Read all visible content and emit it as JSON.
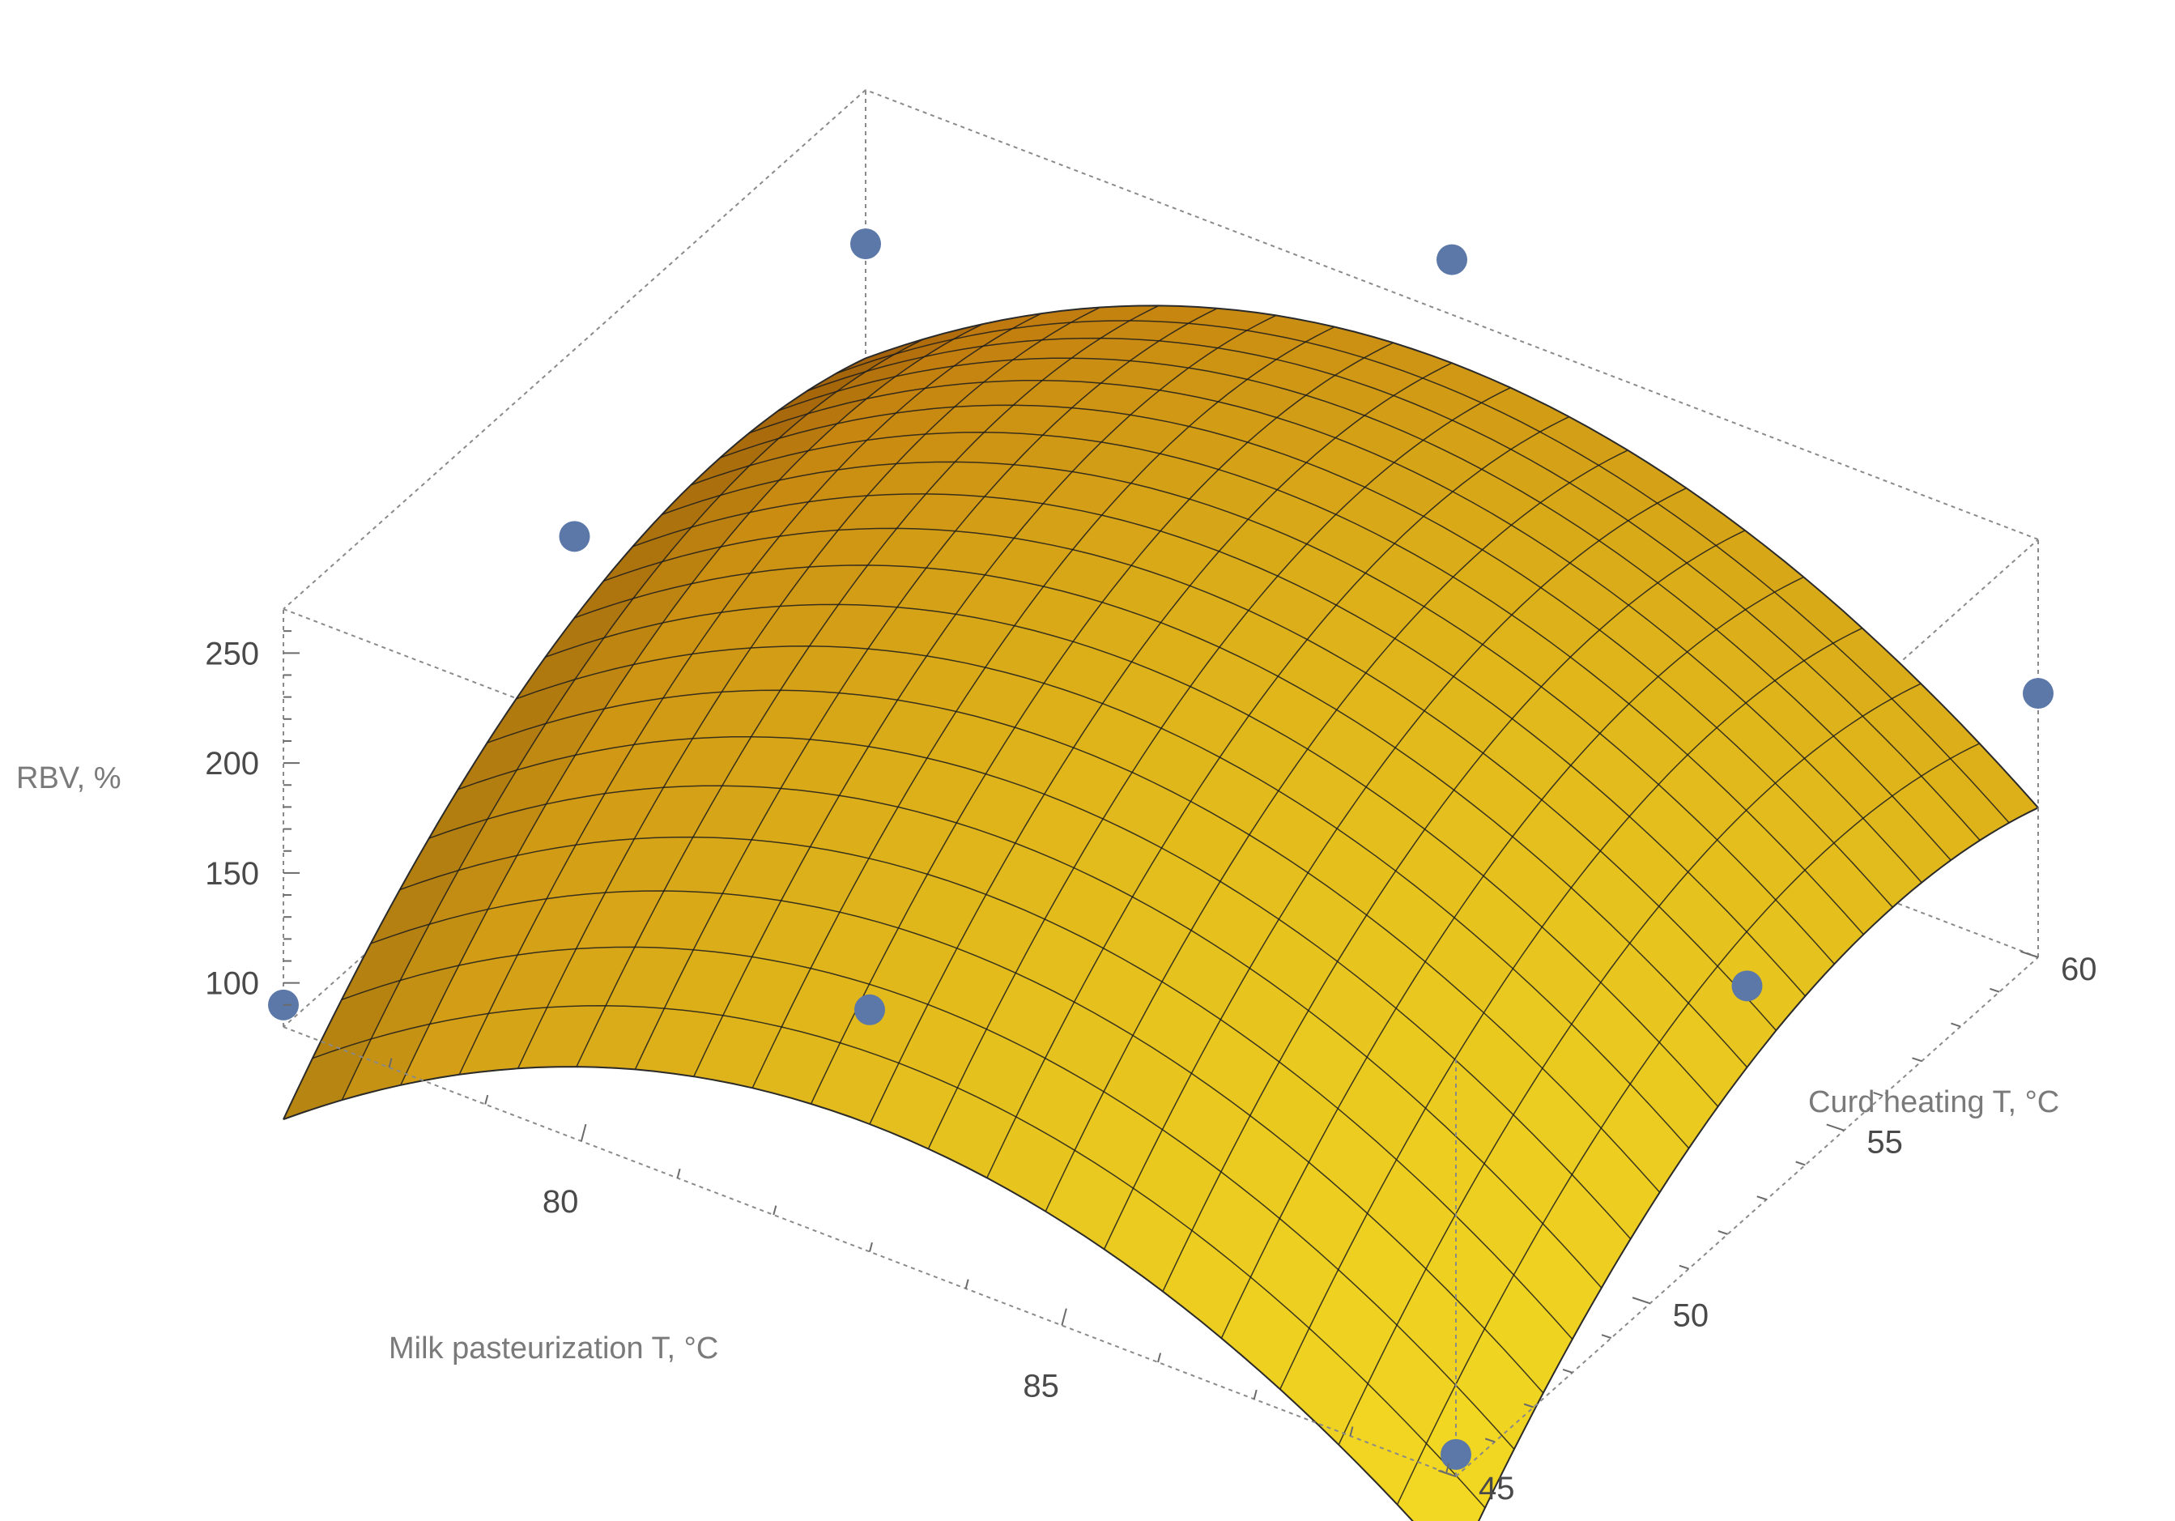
{
  "chart_data": {
    "type": "surface3d",
    "title": "",
    "x_axis": {
      "label": "Milk pasteurization T, °C",
      "range": [
        76.9,
        89.1
      ],
      "ticks": [
        80,
        85
      ]
    },
    "y_axis": {
      "label": "Curd heating T, °C",
      "range": [
        45,
        60
      ],
      "ticks": [
        45,
        50,
        55,
        60
      ]
    },
    "z_axis": {
      "label": "RBV, %",
      "range": [
        80,
        270
      ],
      "ticks": [
        100,
        150,
        200,
        250
      ]
    },
    "surface": {
      "model": "quadratic response surface",
      "color_low": "#fff028",
      "color_high": "#a84e04",
      "mesh_divisions": 20
    },
    "points": [
      {
        "x": 76.9,
        "y": 45,
        "z": 90
      },
      {
        "x": 89.1,
        "y": 45,
        "z": 90
      },
      {
        "x": 76.9,
        "y": 60,
        "z": 200
      },
      {
        "x": 89.1,
        "y": 60,
        "z": 200
      },
      {
        "x": 83.0,
        "y": 45,
        "z": 190
      },
      {
        "x": 83.0,
        "y": 60,
        "z": 295
      },
      {
        "x": 76.9,
        "y": 52.5,
        "z": 185
      },
      {
        "x": 89.1,
        "y": 52.5,
        "z": 185
      }
    ],
    "colors": {
      "points": "#5b78a8",
      "box": "#8a8a8a",
      "mesh": "#1c1c1c"
    }
  }
}
